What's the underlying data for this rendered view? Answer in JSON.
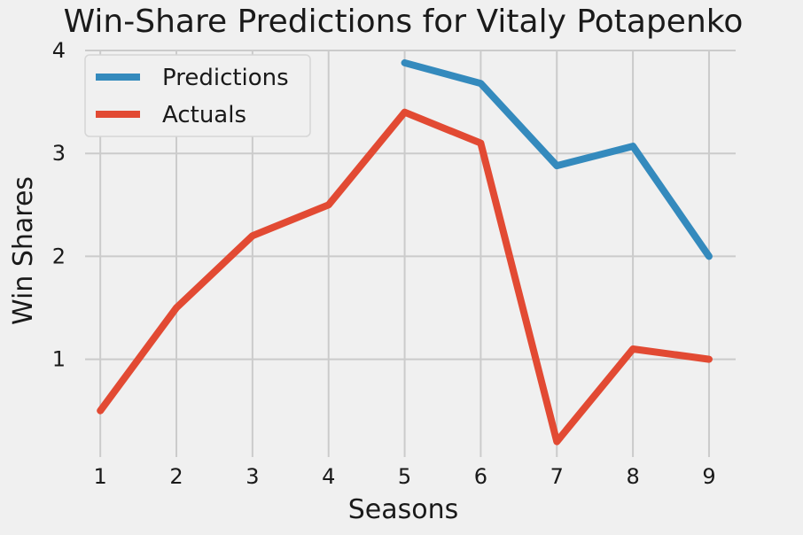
{
  "chart_data": {
    "type": "line",
    "title": "Win-Share Predictions for Vitaly Potapenko",
    "xlabel": "Seasons",
    "ylabel": "Win Shares",
    "xlim": [
      0.8,
      9.35
    ],
    "ylim": [
      0.05,
      4.0
    ],
    "x_ticks": [
      1,
      2,
      3,
      4,
      5,
      6,
      7,
      8,
      9
    ],
    "y_ticks": [
      1,
      2,
      3,
      4
    ],
    "grid": true,
    "legend_position": "top-left",
    "series": [
      {
        "name": "Predictions",
        "color": "#348ABD",
        "x": [
          5,
          6,
          7,
          8,
          9
        ],
        "y": [
          3.88,
          3.68,
          2.88,
          3.07,
          2.0
        ]
      },
      {
        "name": "Actuals",
        "color": "#E24A33",
        "x": [
          1,
          2,
          3,
          4,
          5,
          6,
          7,
          8,
          9
        ],
        "y": [
          0.5,
          1.5,
          2.2,
          2.5,
          3.4,
          3.1,
          0.2,
          1.1,
          1.0
        ]
      }
    ]
  }
}
